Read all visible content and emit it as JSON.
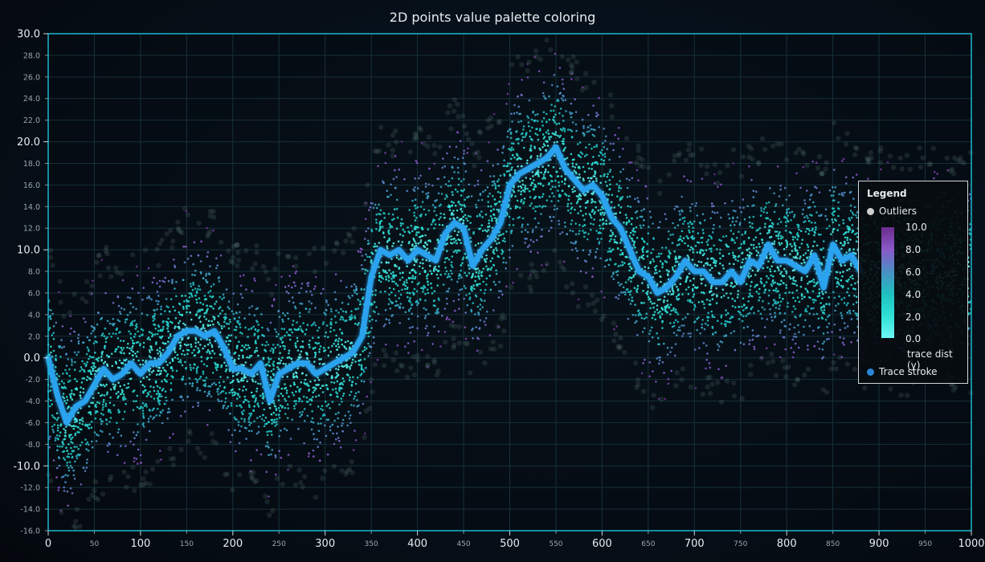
{
  "chart_data": {
    "type": "scatter",
    "title": "2D points value palette coloring",
    "xlim": [
      0,
      1000
    ],
    "ylim": [
      -16.0,
      30.0
    ],
    "x_major_ticks": [
      "0",
      "100",
      "200",
      "300",
      "400",
      "500",
      "600",
      "700",
      "800",
      "900",
      "1000"
    ],
    "x_minor_ticks": [
      "50",
      "150",
      "250",
      "350",
      "450",
      "550",
      "650",
      "750",
      "850",
      "950"
    ],
    "y_major_ticks": [
      "30.0",
      "20.0",
      "10.0",
      "0.0",
      "-10.0"
    ],
    "y_minor_ticks": [
      "28.0",
      "26.0",
      "24.0",
      "22.0",
      "18.0",
      "16.0",
      "14.0",
      "12.0",
      "8.0",
      "6.0",
      "4.0",
      "2.0",
      "-2.0",
      "-4.0",
      "-6.0",
      "-8.0",
      "-12.0",
      "-14.0",
      "-16.0"
    ],
    "series": [
      {
        "name": "Trace stroke",
        "color": "#2aa3f0",
        "x": [
          0,
          10,
          20,
          30,
          40,
          50,
          60,
          70,
          80,
          90,
          100,
          110,
          120,
          130,
          140,
          150,
          160,
          170,
          180,
          190,
          200,
          210,
          220,
          230,
          240,
          250,
          260,
          270,
          280,
          290,
          300,
          310,
          320,
          330,
          340,
          350,
          360,
          370,
          380,
          390,
          400,
          410,
          420,
          430,
          440,
          450,
          460,
          470,
          480,
          490,
          500,
          510,
          520,
          530,
          540,
          550,
          560,
          570,
          580,
          590,
          600,
          610,
          620,
          630,
          640,
          650,
          660,
          670,
          680,
          690,
          700,
          710,
          720,
          730,
          740,
          750,
          760,
          770,
          780,
          790,
          800,
          810,
          820,
          830,
          840,
          850,
          860,
          870,
          880
        ],
        "y": [
          0.0,
          -3.5,
          -6.0,
          -4.5,
          -4.0,
          -2.5,
          -1.0,
          -2.0,
          -1.5,
          -0.5,
          -1.5,
          -0.5,
          -0.5,
          0.5,
          2.0,
          2.5,
          2.5,
          2.0,
          2.5,
          1.0,
          -1.0,
          -1.0,
          -1.5,
          -0.5,
          -4.0,
          -1.5,
          -1.0,
          -0.5,
          -0.5,
          -1.5,
          -1.0,
          -0.5,
          0.0,
          0.5,
          2.0,
          7.5,
          10.0,
          9.5,
          10.0,
          9.0,
          10.0,
          9.5,
          9.0,
          11.5,
          12.5,
          12.0,
          8.5,
          10.0,
          11.0,
          12.5,
          16.0,
          17.0,
          17.5,
          18.0,
          18.5,
          19.5,
          17.5,
          16.5,
          15.5,
          16.0,
          15.0,
          13.0,
          12.0,
          10.0,
          8.0,
          7.5,
          6.0,
          6.5,
          7.5,
          9.0,
          8.0,
          8.0,
          7.0,
          7.0,
          8.0,
          7.0,
          9.0,
          8.5,
          10.5,
          9.0,
          9.0,
          8.5,
          8.0,
          9.5,
          6.5,
          10.5,
          9.0,
          9.5,
          8.0
        ]
      },
      {
        "name": "Outliers",
        "color": "#c8c8c8",
        "x": [],
        "y": []
      }
    ],
    "scatter_points": {
      "band_halfwidth": 10,
      "palette": {
        "label": "trace dist (y)",
        "steps": [
          {
            "value": 0.0,
            "color": "#6ff6f3"
          },
          {
            "value": 2.0,
            "color": "#2fe0d6"
          },
          {
            "value": 4.0,
            "color": "#1fbfc0"
          },
          {
            "value": 6.0,
            "color": "#4a8fc4"
          },
          {
            "value": 8.0,
            "color": "#8a58c8"
          },
          {
            "value": 10.0,
            "color": "#6a2c8c"
          }
        ]
      }
    }
  },
  "legend": {
    "title": "Legend",
    "outliers_label": "Outliers",
    "outliers_color": "#cfcfcf",
    "palette_ticks": [
      "10.0",
      "8.0",
      "6.0",
      "4.0",
      "2.0",
      "0.0"
    ],
    "palette_label": "trace dist (y)",
    "trace_label": "Trace stroke",
    "trace_color": "#2a86d6"
  },
  "colors": {
    "frame": "#1bb7cf",
    "grid": "#17303a",
    "axis_text": "#e6ecef",
    "minor_text": "#9aa6ad"
  }
}
